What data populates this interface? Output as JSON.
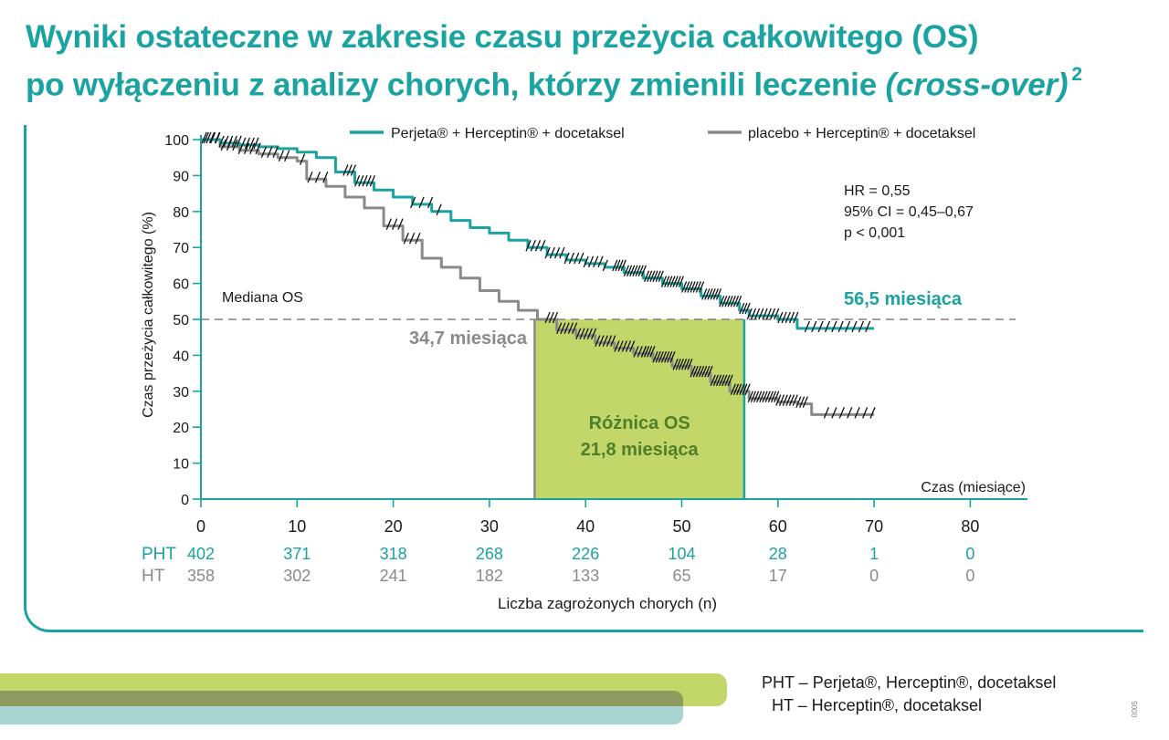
{
  "title_line1": "Wyniki ostateczne w zakresie czasu przeżycia całkowitego (OS)",
  "title_line2_main": "po wyłączeniu z analizy chorych, którzy zmienili leczenie ",
  "title_line2_italic": "(cross-over)",
  "title_sup": "2",
  "chart_data": {
    "type": "line",
    "ylabel": "Czas przeżycia całkowitego  (%)",
    "xlabel": "Czas (miesiące)",
    "x_ticks": [
      0,
      10,
      20,
      30,
      40,
      50,
      60,
      70,
      80
    ],
    "y_ticks": [
      0,
      10,
      20,
      30,
      40,
      50,
      60,
      70,
      80,
      90,
      100
    ],
    "xlim": [
      0,
      86
    ],
    "ylim": [
      0,
      100
    ],
    "colors": {
      "pht": "#1aa3a0",
      "ht": "#8a8a8a",
      "diff_fill": "#c3d66a",
      "diff_text": "#4f7f2a"
    },
    "series": [
      {
        "name": "Perjeta® + Herceptin® + docetaksel",
        "x": [
          0,
          2,
          4,
          6,
          8,
          10,
          12,
          14,
          16,
          18,
          20,
          22,
          24,
          26,
          28,
          30,
          32,
          34,
          36,
          38,
          40,
          42,
          44,
          46,
          48,
          50,
          52,
          54,
          56,
          57,
          60,
          62,
          64,
          66,
          68,
          70
        ],
        "y": [
          100,
          99,
          98.5,
          98,
          97.5,
          96.5,
          95,
          91,
          88,
          86,
          84,
          82,
          80,
          77.5,
          75.5,
          74,
          72,
          70,
          68,
          66.5,
          65.5,
          64.5,
          63,
          61.5,
          60,
          58.5,
          56.5,
          54.5,
          52.5,
          51,
          50,
          47.5,
          47.5,
          47.5,
          47.5,
          47.5
        ]
      },
      {
        "name": "placebo + Herceptin® + docetaksel",
        "x": [
          0,
          2,
          4,
          6,
          8,
          10,
          11,
          13,
          15,
          17,
          19,
          21,
          23,
          25,
          27,
          29,
          31,
          33,
          35,
          37,
          39,
          41,
          43,
          45,
          47,
          49,
          51,
          53,
          55,
          57,
          60,
          62,
          63.5,
          66,
          68,
          70
        ],
        "y": [
          100,
          98,
          97,
          96,
          95,
          94,
          89,
          87,
          84,
          81,
          76,
          72,
          67,
          64.5,
          61.5,
          58,
          55,
          52.5,
          50,
          47,
          45.5,
          43.5,
          42,
          40.5,
          39,
          37,
          35,
          32.5,
          30,
          28,
          27,
          26.5,
          23.5,
          23.5,
          23.5,
          23.5
        ]
      }
    ],
    "median_line": 50,
    "median_label": "Mediana OS",
    "median_pht": 56.5,
    "median_pht_label": "56,5 miesiąca",
    "median_ht": 34.7,
    "median_ht_label": "34,7 miesiąca",
    "diff_label_1": "Różnica OS",
    "diff_label_2": "21,8 miesiąca",
    "stats": [
      "HR = 0,55",
      "95% CI = 0,45–0,67",
      "p < 0,001"
    ],
    "risk_table": {
      "title": "Liczba zagrożonych chorych (n)",
      "rows": [
        {
          "label": "PHT",
          "values": [
            "402",
            "371",
            "318",
            "268",
            "226",
            "104",
            "28",
            "1",
            "0"
          ]
        },
        {
          "label": "HT",
          "values": [
            "358",
            "302",
            "241",
            "182",
            "133",
            "65",
            "17",
            "0",
            "0"
          ]
        }
      ]
    }
  },
  "footnote": {
    "line1": "PHT – Perjeta®, Herceptin®, docetaksel",
    "line2": "HT – Herceptin®, docetaksel"
  },
  "code": "0005"
}
